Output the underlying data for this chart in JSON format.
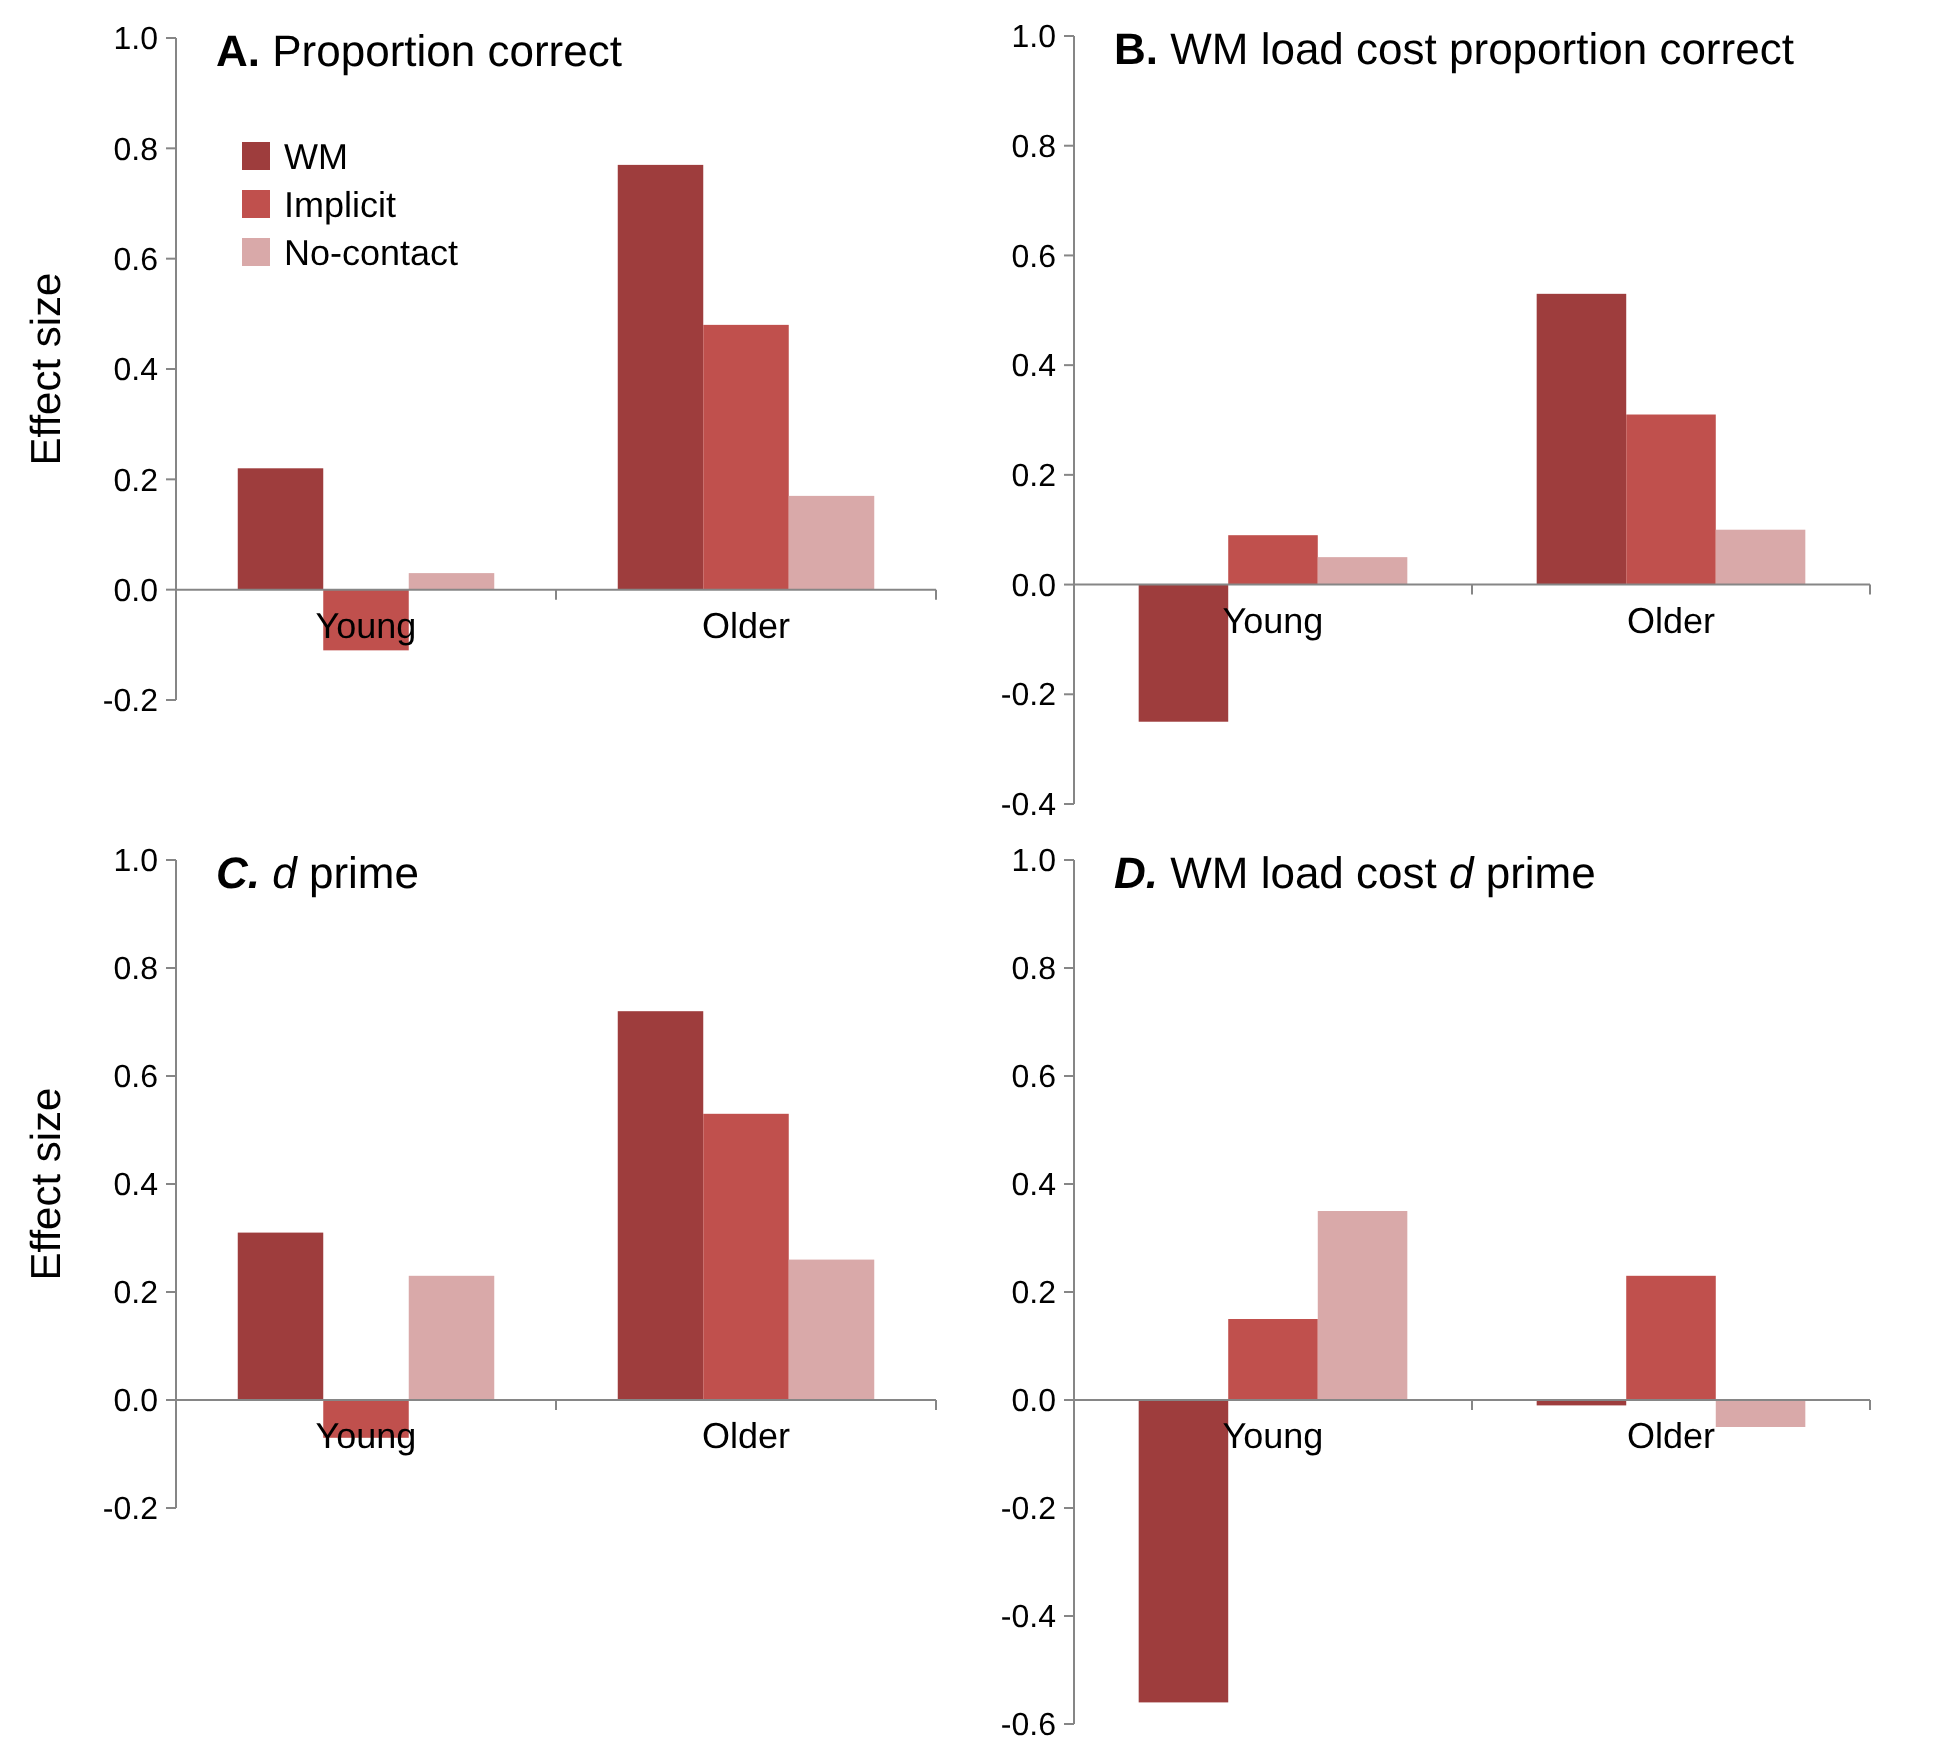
{
  "chart_data": [
    {
      "type": "bar",
      "title": "A. Proportion correct",
      "ylabel": "Effect size",
      "categories": [
        "Young",
        "Older"
      ],
      "legend": "top left",
      "ylim": [
        -0.2,
        1.0
      ],
      "yticks": [
        {
          "value": -0.2,
          "label": "-0.2"
        },
        {
          "value": 0,
          "label": "0.0"
        },
        {
          "value": 0.2,
          "label": "0.2"
        },
        {
          "value": 0.4,
          "label": "0.4"
        },
        {
          "value": 0.6,
          "label": "0.6"
        },
        {
          "value": 0.8,
          "label": "0.8"
        },
        {
          "value": 1.0,
          "label": "1.0"
        }
      ],
      "series": [
        {
          "name": "WM",
          "color": "#9e3d3d",
          "values": [
            0.22,
            0.77
          ]
        },
        {
          "name": "Implicit",
          "color": "#c0504d",
          "values": [
            -0.11,
            0.48
          ]
        },
        {
          "name": "No-contact",
          "color": "#d9a9a9",
          "values": [
            0.03,
            0.17
          ]
        }
      ]
    },
    {
      "type": "bar",
      "title": "B. WM load cost proportion correct",
      "categories": [
        "Young",
        "Older"
      ],
      "ylim": [
        -0.4,
        1.0
      ],
      "yticks": [
        {
          "value": -0.4,
          "label": "-0.4"
        },
        {
          "value": -0.2,
          "label": "-0.2"
        },
        {
          "value": 0,
          "label": "0.0"
        },
        {
          "value": 0.2,
          "label": "0.2"
        },
        {
          "value": 0.4,
          "label": "0.4"
        },
        {
          "value": 0.6,
          "label": "0.6"
        },
        {
          "value": 0.8,
          "label": "0.8"
        },
        {
          "value": 1.0,
          "label": "1.0"
        }
      ],
      "series": [
        {
          "color": "#9e3d3d",
          "values": [
            -0.25,
            0.53
          ]
        },
        {
          "color": "#c0504d",
          "values": [
            0.09,
            0.31
          ]
        },
        {
          "color": "#d9a9a9",
          "values": [
            0.05,
            0.1
          ]
        }
      ]
    },
    {
      "type": "bar",
      "title": "C. d prime",
      "ylabel": "Effect size",
      "categories": [
        "Young",
        "Older"
      ],
      "ylim": [
        -0.2,
        1.0
      ],
      "yticks": [
        {
          "value": -0.2,
          "label": "-0.2"
        },
        {
          "value": 0,
          "label": "0.0"
        },
        {
          "value": 0.2,
          "label": "0.2"
        },
        {
          "value": 0.4,
          "label": "0.4"
        },
        {
          "value": 0.6,
          "label": "0.6"
        },
        {
          "value": 0.8,
          "label": "0.8"
        },
        {
          "value": 1.0,
          "label": "1.0"
        }
      ],
      "series": [
        {
          "color": "#9e3d3d",
          "values": [
            0.31,
            0.72
          ]
        },
        {
          "color": "#c0504d",
          "values": [
            -0.07,
            0.53
          ]
        },
        {
          "color": "#d9a9a9",
          "values": [
            0.23,
            0.26
          ]
        }
      ]
    },
    {
      "type": "bar",
      "title": "D. WM load cost d prime",
      "categories": [
        "Young",
        "Older"
      ],
      "ylim": [
        -0.6,
        1.0
      ],
      "yticks": [
        {
          "value": -0.6,
          "label": "-0.6"
        },
        {
          "value": -0.4,
          "label": "-0.4"
        },
        {
          "value": -0.2,
          "label": "-0.2"
        },
        {
          "value": 0,
          "label": "0.0"
        },
        {
          "value": 0.2,
          "label": "0.2"
        },
        {
          "value": 0.4,
          "label": "0.4"
        },
        {
          "value": 0.6,
          "label": "0.6"
        },
        {
          "value": 0.8,
          "label": "0.8"
        },
        {
          "value": 1.0,
          "label": "1.0"
        }
      ],
      "series": [
        {
          "color": "#9e3d3d",
          "values": [
            -0.56,
            -0.01
          ]
        },
        {
          "color": "#c0504d",
          "values": [
            0.15,
            0.23
          ]
        },
        {
          "color": "#d9a9a9",
          "values": [
            0.35,
            -0.05
          ]
        }
      ]
    }
  ]
}
